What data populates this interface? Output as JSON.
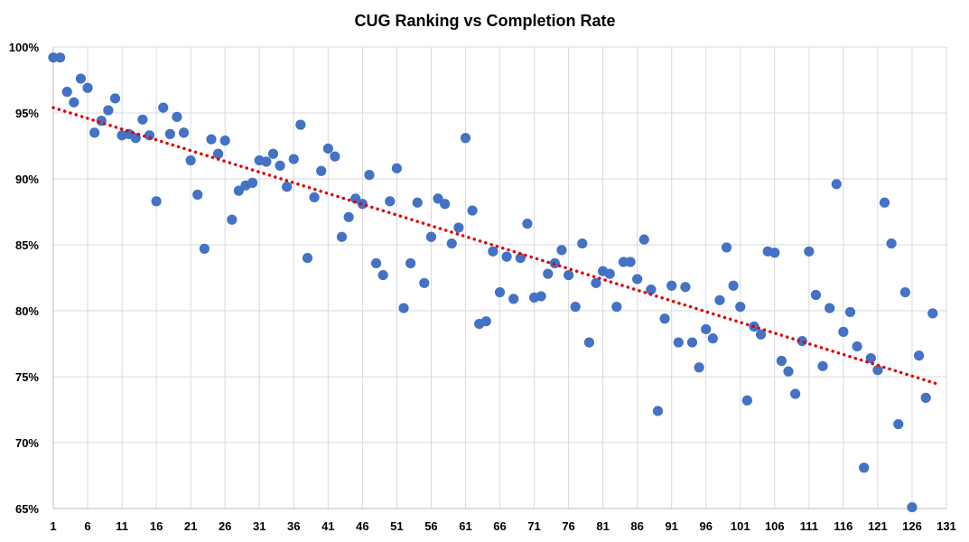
{
  "chart_data": {
    "type": "scatter",
    "title": "CUG Ranking vs Completion Rate",
    "xlabel": "",
    "ylabel": "",
    "xlim": [
      1,
      131
    ],
    "ylim": [
      65,
      100
    ],
    "x_ticks": [
      "1",
      "6",
      "11",
      "16",
      "21",
      "26",
      "31",
      "36",
      "41",
      "46",
      "51",
      "56",
      "61",
      "66",
      "71",
      "76",
      "81",
      "86",
      "91",
      "96",
      "101",
      "106",
      "111",
      "116",
      "121",
      "126",
      "131"
    ],
    "y_ticks": [
      "65%",
      "70%",
      "75%",
      "80%",
      "85%",
      "90%",
      "95%",
      "100%"
    ],
    "grid": true,
    "point_color": "#4472c4",
    "trendline": {
      "type": "linear",
      "color": "#e00000",
      "style": "dotted",
      "x": [
        1,
        130
      ],
      "y": [
        95.4,
        74.4
      ]
    },
    "series": [
      {
        "points": [
          [
            1,
            99.2
          ],
          [
            2,
            99.2
          ],
          [
            3,
            96.6
          ],
          [
            4,
            95.8
          ],
          [
            5,
            97.6
          ],
          [
            6,
            96.9
          ],
          [
            7,
            93.5
          ],
          [
            8,
            94.4
          ],
          [
            9,
            95.2
          ],
          [
            10,
            96.1
          ],
          [
            11,
            93.3
          ],
          [
            12,
            93.4
          ],
          [
            13,
            93.1
          ],
          [
            14,
            94.5
          ],
          [
            15,
            93.3
          ],
          [
            16,
            88.3
          ],
          [
            17,
            95.4
          ],
          [
            18,
            93.4
          ],
          [
            19,
            94.7
          ],
          [
            20,
            93.5
          ],
          [
            21,
            91.4
          ],
          [
            22,
            88.8
          ],
          [
            23,
            84.7
          ],
          [
            24,
            93.0
          ],
          [
            25,
            91.9
          ],
          [
            26,
            92.9
          ],
          [
            27,
            86.9
          ],
          [
            28,
            89.1
          ],
          [
            29,
            89.5
          ],
          [
            30,
            89.7
          ],
          [
            31,
            91.4
          ],
          [
            32,
            91.3
          ],
          [
            33,
            91.9
          ],
          [
            34,
            91.0
          ],
          [
            35,
            89.4
          ],
          [
            36,
            91.5
          ],
          [
            37,
            94.1
          ],
          [
            38,
            84.0
          ],
          [
            39,
            88.6
          ],
          [
            40,
            90.6
          ],
          [
            41,
            92.3
          ],
          [
            42,
            91.7
          ],
          [
            43,
            85.6
          ],
          [
            44,
            87.1
          ],
          [
            45,
            88.5
          ],
          [
            46,
            88.1
          ],
          [
            47,
            90.3
          ],
          [
            48,
            83.6
          ],
          [
            49,
            82.7
          ],
          [
            50,
            88.3
          ],
          [
            51,
            90.8
          ],
          [
            52,
            80.2
          ],
          [
            53,
            83.6
          ],
          [
            54,
            88.2
          ],
          [
            55,
            82.1
          ],
          [
            56,
            85.6
          ],
          [
            57,
            88.5
          ],
          [
            58,
            88.1
          ],
          [
            59,
            85.1
          ],
          [
            60,
            86.3
          ],
          [
            61,
            93.1
          ],
          [
            62,
            87.6
          ],
          [
            63,
            79.0
          ],
          [
            64,
            79.2
          ],
          [
            65,
            84.5
          ],
          [
            66,
            81.4
          ],
          [
            67,
            84.1
          ],
          [
            68,
            80.9
          ],
          [
            69,
            84.0
          ],
          [
            70,
            86.6
          ],
          [
            71,
            81.0
          ],
          [
            72,
            81.1
          ],
          [
            73,
            82.8
          ],
          [
            74,
            83.6
          ],
          [
            75,
            84.6
          ],
          [
            76,
            82.7
          ],
          [
            77,
            80.3
          ],
          [
            78,
            85.1
          ],
          [
            79,
            77.6
          ],
          [
            80,
            82.1
          ],
          [
            81,
            83.0
          ],
          [
            82,
            82.8
          ],
          [
            83,
            80.3
          ],
          [
            84,
            83.7
          ],
          [
            85,
            83.7
          ],
          [
            86,
            82.4
          ],
          [
            87,
            85.4
          ],
          [
            88,
            81.6
          ],
          [
            89,
            72.4
          ],
          [
            90,
            79.4
          ],
          [
            91,
            81.9
          ],
          [
            92,
            77.6
          ],
          [
            93,
            81.8
          ],
          [
            94,
            77.6
          ],
          [
            95,
            75.7
          ],
          [
            96,
            78.6
          ],
          [
            97,
            77.9
          ],
          [
            98,
            80.8
          ],
          [
            99,
            84.8
          ],
          [
            100,
            81.9
          ],
          [
            101,
            80.3
          ],
          [
            102,
            73.2
          ],
          [
            103,
            78.8
          ],
          [
            104,
            78.2
          ],
          [
            105,
            84.5
          ],
          [
            106,
            84.4
          ],
          [
            107,
            76.2
          ],
          [
            108,
            75.4
          ],
          [
            109,
            73.7
          ],
          [
            110,
            77.7
          ],
          [
            111,
            84.5
          ],
          [
            112,
            81.2
          ],
          [
            113,
            75.8
          ],
          [
            114,
            80.2
          ],
          [
            115,
            89.6
          ],
          [
            116,
            78.4
          ],
          [
            117,
            79.9
          ],
          [
            118,
            77.3
          ],
          [
            119,
            68.1
          ],
          [
            120,
            76.4
          ],
          [
            121,
            75.5
          ],
          [
            122,
            88.2
          ],
          [
            123,
            85.1
          ],
          [
            124,
            71.4
          ],
          [
            125,
            81.4
          ],
          [
            126,
            65.1
          ],
          [
            127,
            76.6
          ],
          [
            128,
            73.4
          ],
          [
            129,
            79.8
          ]
        ]
      }
    ]
  }
}
